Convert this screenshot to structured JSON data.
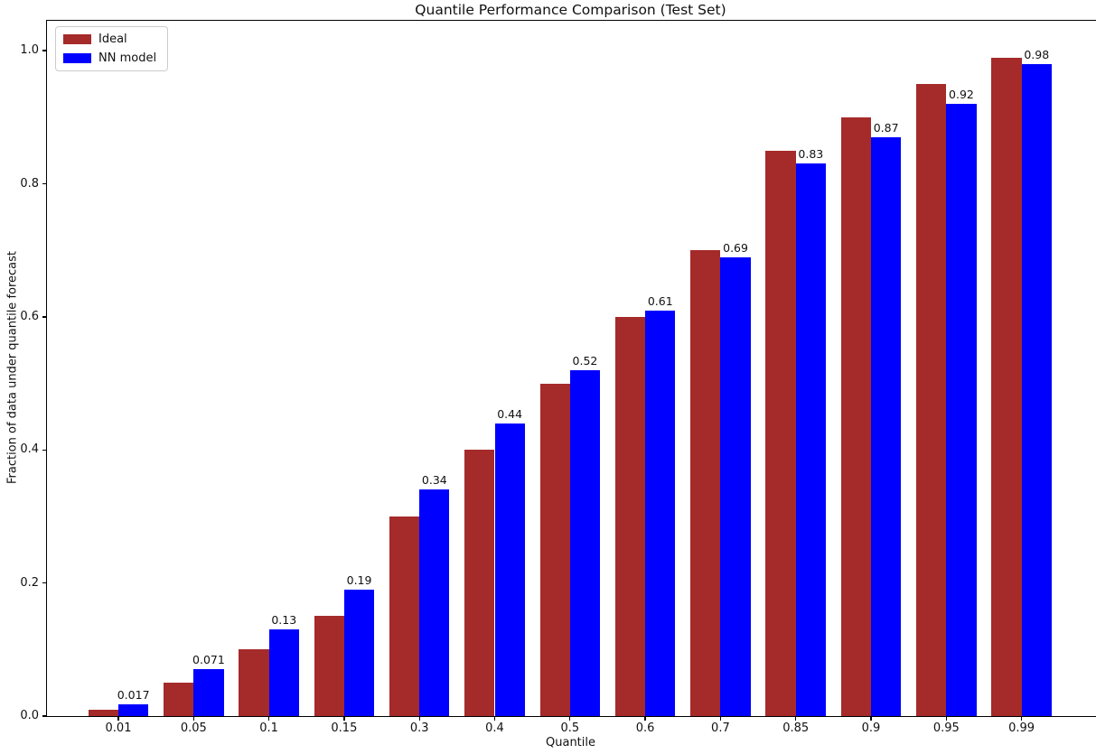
{
  "chart_data": {
    "type": "bar",
    "title": "Quantile Performance Comparison (Test Set)",
    "xlabel": "Quantile",
    "ylabel": "Fraction of data under quantile forecast",
    "categories": [
      "0.01",
      "0.05",
      "0.1",
      "0.15",
      "0.3",
      "0.4",
      "0.5",
      "0.6",
      "0.7",
      "0.85",
      "0.9",
      "0.95",
      "0.99"
    ],
    "series": [
      {
        "name": "Ideal",
        "color": "#A52A2A",
        "values": [
          0.01,
          0.05,
          0.1,
          0.15,
          0.3,
          0.4,
          0.5,
          0.6,
          0.7,
          0.85,
          0.9,
          0.95,
          0.99
        ]
      },
      {
        "name": "NN model",
        "color": "#0000FF",
        "values": [
          0.017,
          0.071,
          0.13,
          0.19,
          0.34,
          0.44,
          0.52,
          0.61,
          0.69,
          0.83,
          0.87,
          0.92,
          0.98
        ]
      }
    ],
    "bar_labels": [
      "0.017",
      "0.071",
      "0.13",
      "0.19",
      "0.34",
      "0.44",
      "0.52",
      "0.61",
      "0.69",
      "0.83",
      "0.87",
      "0.92",
      "0.98"
    ],
    "yticks": [
      "0.0",
      "0.2",
      "0.4",
      "0.6",
      "0.8",
      "1.0"
    ],
    "ylim": [
      0,
      1.045
    ],
    "legend_position": "upper left",
    "grid": false
  }
}
